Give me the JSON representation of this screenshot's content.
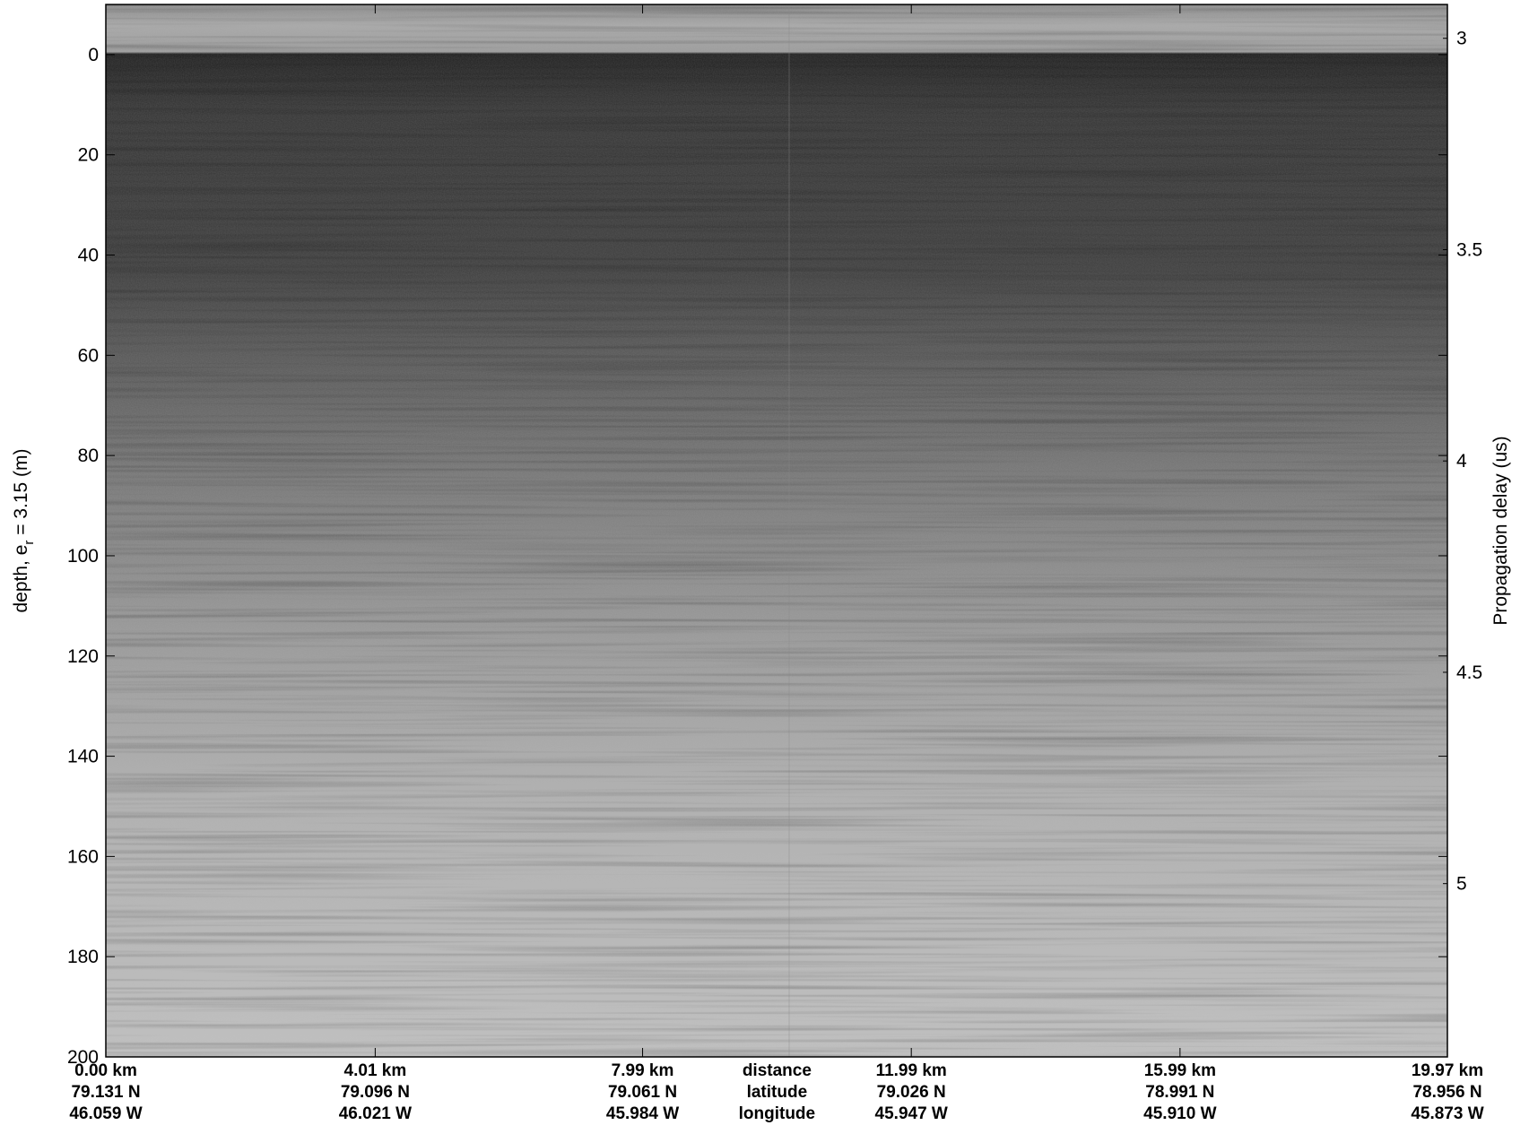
{
  "chart_data": {
    "type": "echogram",
    "ylabel": [
      "depth, e",
      "r",
      " = 3.15 (m)"
    ],
    "y2label": "Propagation delay (us)",
    "ylim": [
      -10,
      200
    ],
    "yticks": [
      0,
      20,
      40,
      60,
      80,
      100,
      120,
      140,
      160,
      180,
      200
    ],
    "y2lim": [
      2.92,
      5.41
    ],
    "y2ticks": [
      3,
      3.5,
      4,
      4.5,
      5
    ],
    "xlim": [
      0,
      19.97
    ],
    "xticks": [
      {
        "value": 0,
        "label": "0.00 km"
      },
      {
        "value": 4.01,
        "label": "4.01 km"
      },
      {
        "value": 7.99,
        "label": "7.99 km"
      },
      {
        "value": 11.99,
        "label": "11.99 km"
      },
      {
        "value": 15.99,
        "label": "15.99 km"
      },
      {
        "value": 19.97,
        "label": "19.97 km"
      }
    ],
    "latitude": [
      "79.131 N",
      "79.096 N",
      "79.061 N",
      "79.026 N",
      "78.991 N",
      "78.956 N"
    ],
    "longitude": [
      "46.059 W",
      "46.021 W",
      "45.984 W",
      "45.947 W",
      "45.910 W",
      "45.873 W"
    ],
    "row_names": [
      "distance",
      "latitude",
      "longitude"
    ]
  }
}
